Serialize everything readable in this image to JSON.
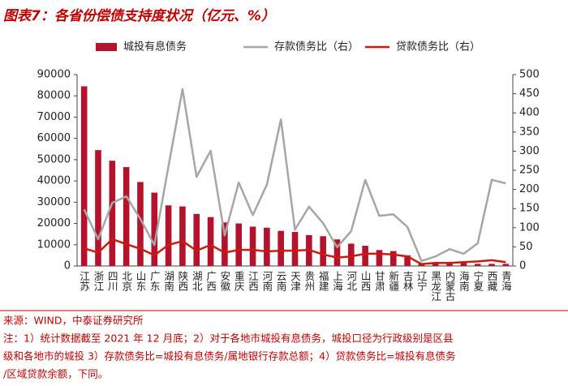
{
  "chart_data": {
    "type": "bar_line",
    "title": "图表7：各省份偿债支持度状况（亿元、%）",
    "categories": [
      "江苏",
      "浙江",
      "四川",
      "北京",
      "山东",
      "广东",
      "湖南",
      "陕西",
      "湖北",
      "广西",
      "安徽",
      "重庆",
      "江西",
      "河南",
      "云南",
      "天津",
      "贵州",
      "福建",
      "上海",
      "河北",
      "山西",
      "甘肃",
      "新疆",
      "吉林",
      "辽宁",
      "黑龙江",
      "内蒙古",
      "海南",
      "宁夏",
      "西藏",
      "青海"
    ],
    "series": [
      {
        "name": "城投有息债务",
        "type": "bar",
        "color": "#b5122e",
        "values": [
          84500,
          54500,
          49500,
          46500,
          39500,
          34500,
          28500,
          28000,
          24500,
          23000,
          20500,
          20000,
          18500,
          18000,
          16500,
          16000,
          14500,
          14000,
          12500,
          10500,
          9500,
          7500,
          7000,
          5000,
          1000,
          1500,
          1500,
          1500,
          1000,
          1000,
          1000
        ]
      },
      {
        "name": "存款债务比（右）",
        "type": "line",
        "axis": "y2",
        "color": "#a6a6a6",
        "values": [
          148,
          70,
          165,
          182,
          123,
          55,
          260,
          462,
          233,
          301,
          80,
          218,
          133,
          212,
          383,
          95,
          155,
          112,
          49,
          91,
          225,
          131,
          135,
          102,
          13,
          25,
          44,
          32,
          59,
          225,
          216
        ]
      },
      {
        "name": "贷款债务比（右）",
        "type": "line",
        "axis": "y2",
        "color": "#cc1a0e",
        "values": [
          46,
          35,
          70,
          57,
          45,
          28,
          55,
          65,
          40,
          55,
          35,
          42,
          42,
          38,
          40,
          40,
          42,
          30,
          22,
          25,
          32,
          32,
          30,
          25,
          5,
          8,
          8,
          10,
          12,
          15,
          10
        ]
      }
    ],
    "ylim": [
      0,
      90000
    ],
    "yticks": [
      0,
      10000,
      20000,
      30000,
      40000,
      50000,
      60000,
      70000,
      80000,
      90000
    ],
    "y2lim": [
      0,
      500
    ],
    "y2ticks": [
      0,
      50,
      100,
      150,
      200,
      250,
      300,
      350,
      400,
      450,
      500
    ],
    "source": "来源：WIND，中泰证券研究所",
    "notes": [
      "注：1）统计数据截至 2021 年 12 月底；2）对于各地市城投有息债务，城投口径为行政级别是区县",
      "级和各地市的城投 3）存款债务比=城投有息债务/属地银行存款总额；4）贷款债务比=城投有息债务",
      "/区域贷款余额，下同。"
    ]
  }
}
